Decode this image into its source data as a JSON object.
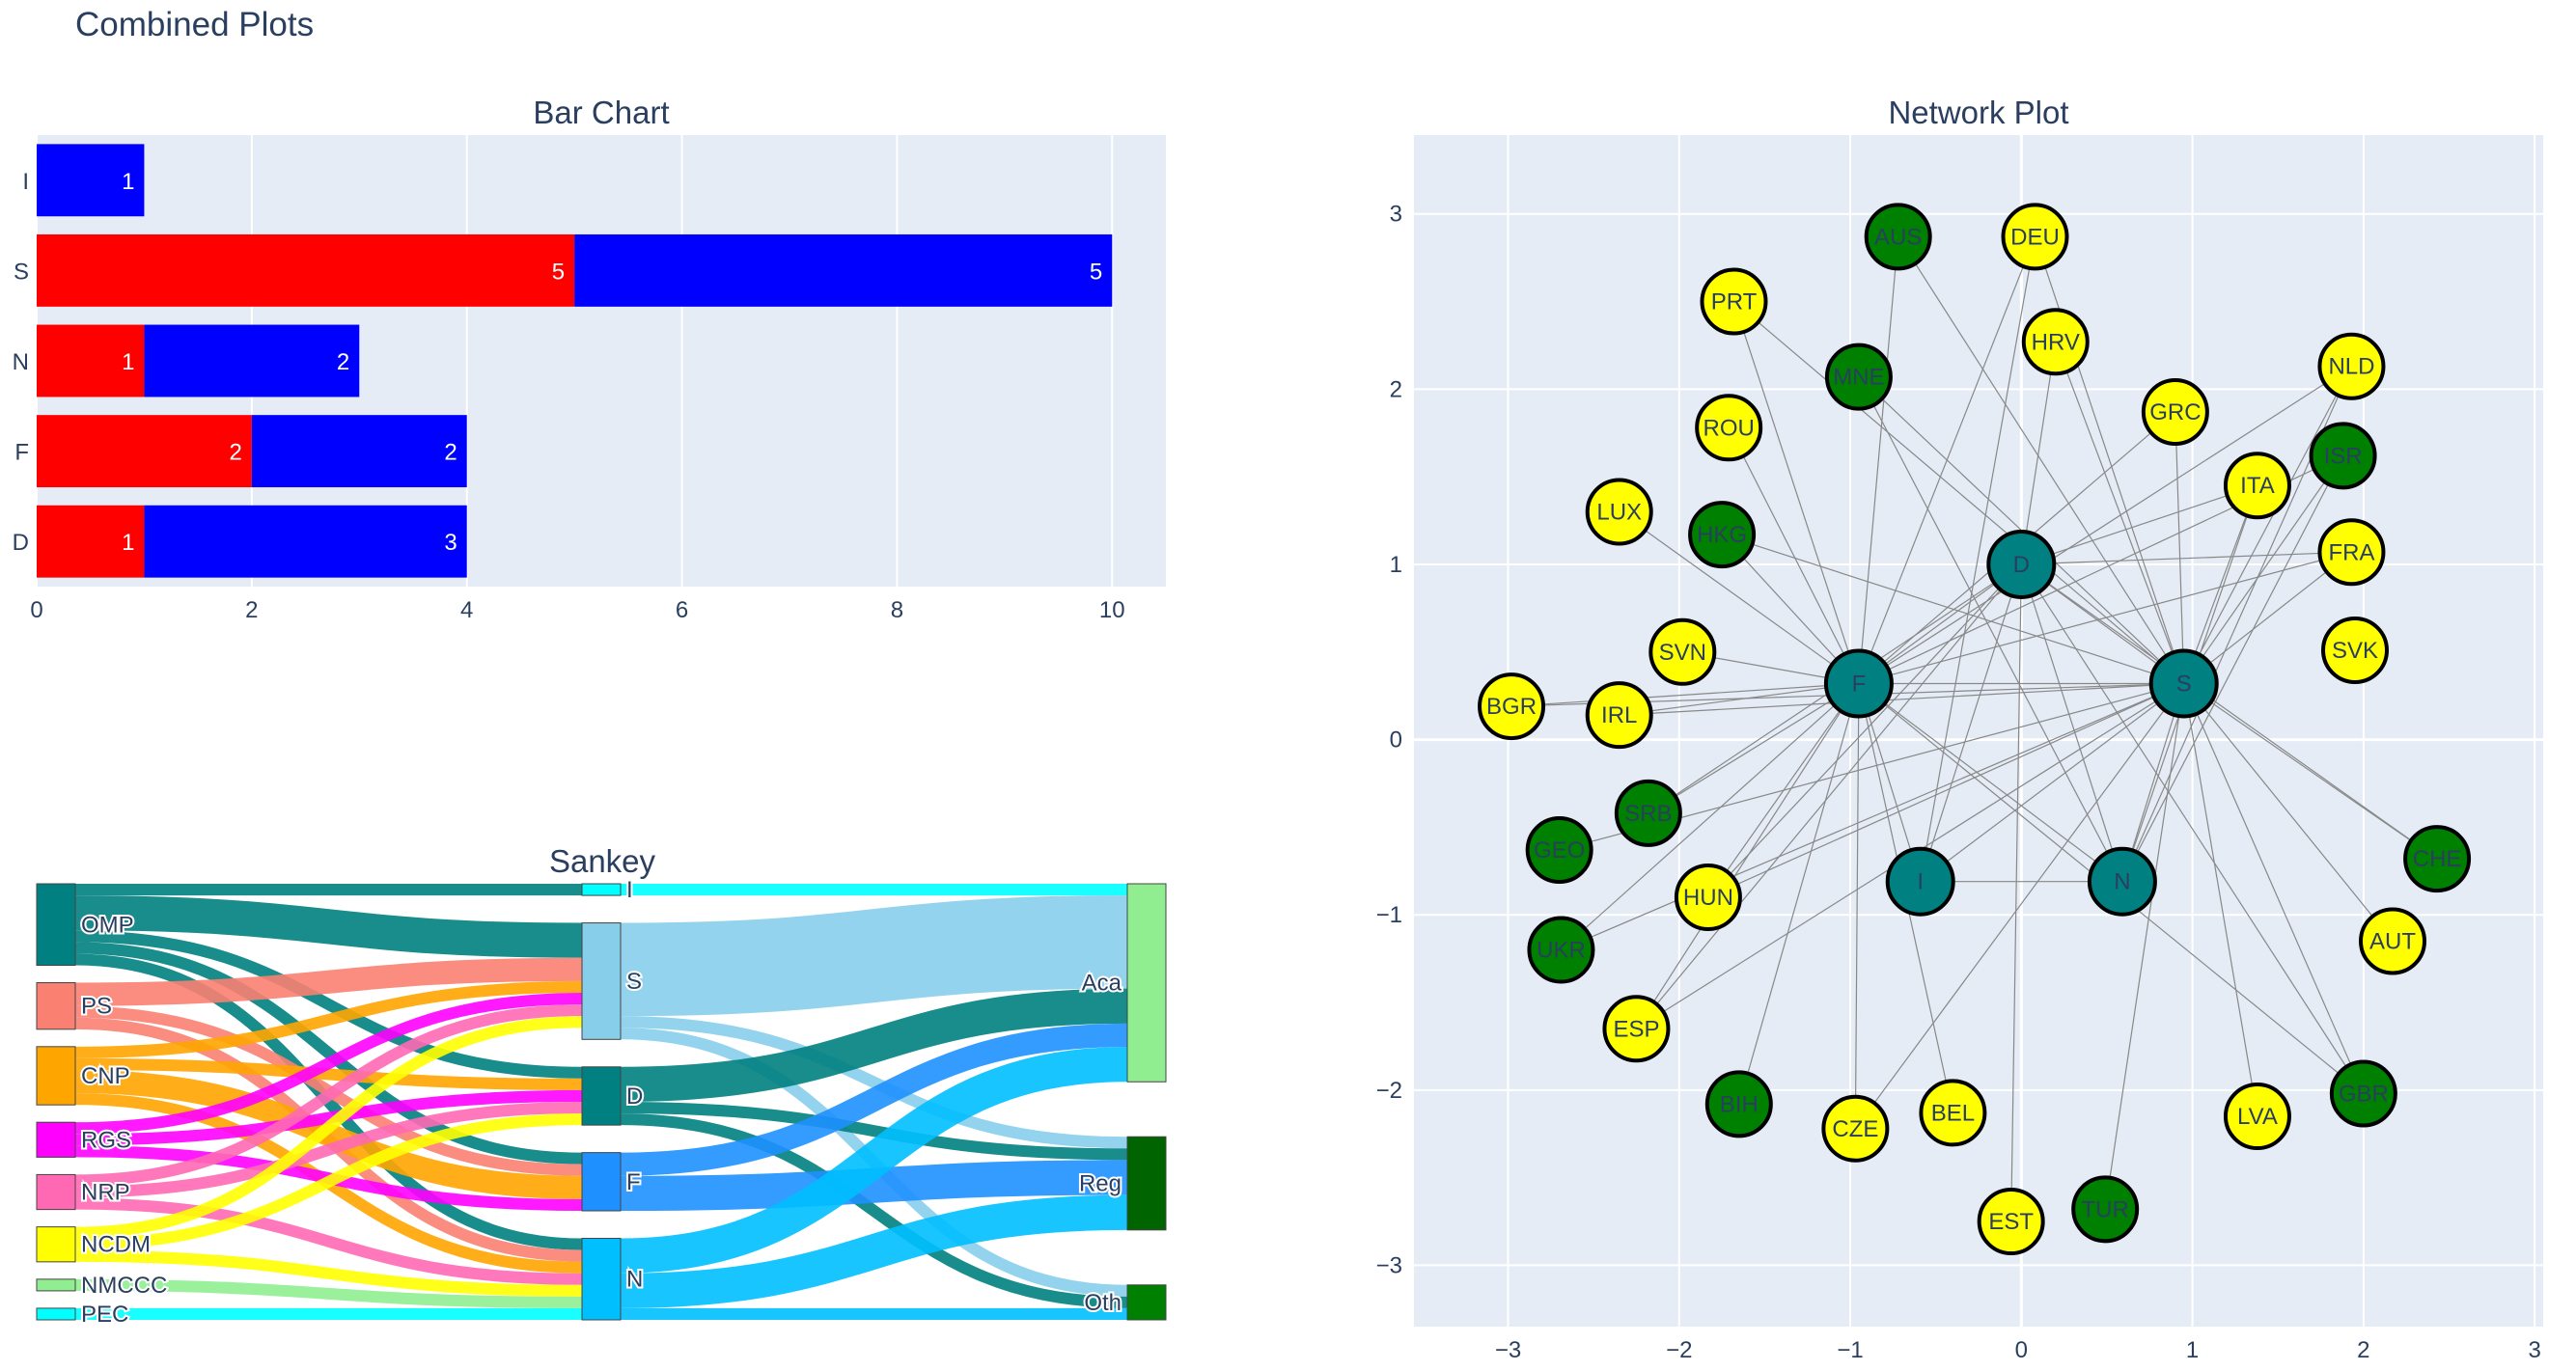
{
  "title": "Combined Plots",
  "colors": {
    "bg": "#e5ecf6",
    "grid": "#ffffff",
    "axis_text": "#2a3f5f"
  },
  "chart_data": [
    {
      "type": "bar",
      "title": "Bar Chart",
      "orientation": "horizontal",
      "barmode": "stack",
      "categories": [
        "I",
        "S",
        "N",
        "F",
        "D"
      ],
      "series": [
        {
          "color": "#ff0000",
          "values": [
            0,
            5,
            1,
            2,
            1
          ]
        },
        {
          "color": "#0000ff",
          "values": [
            1,
            5,
            2,
            2,
            3
          ]
        }
      ],
      "xlim": [
        0,
        10.5
      ],
      "xticks": [
        0,
        2,
        4,
        6,
        8,
        10
      ],
      "grid": true
    },
    {
      "type": "sankey",
      "title": "Sankey",
      "nodes": [
        {
          "id": "OMP",
          "label": "OMP",
          "color": "#008080",
          "column": 0
        },
        {
          "id": "PS",
          "label": "PS",
          "color": "#fa8072",
          "column": 0
        },
        {
          "id": "CNP",
          "label": "CNP",
          "color": "#ffa500",
          "column": 0
        },
        {
          "id": "RGS",
          "label": "RGS",
          "color": "#ff00ff",
          "column": 0
        },
        {
          "id": "NRP",
          "label": "NRP",
          "color": "#ff69b4",
          "column": 0
        },
        {
          "id": "NCDM",
          "label": "NCDM",
          "color": "#ffff00",
          "column": 0
        },
        {
          "id": "NMCCC",
          "label": "NMCCC",
          "color": "#90ee90",
          "column": 0
        },
        {
          "id": "PEC",
          "label": "PEC",
          "color": "#00ffff",
          "column": 0
        },
        {
          "id": "I",
          "label": "I",
          "color": "#00ffff",
          "column": 1
        },
        {
          "id": "S",
          "label": "S",
          "color": "#87ceeb",
          "column": 1
        },
        {
          "id": "D",
          "label": "D",
          "color": "#008080",
          "column": 1
        },
        {
          "id": "F",
          "label": "F",
          "color": "#1e90ff",
          "column": 1
        },
        {
          "id": "N",
          "label": "N",
          "color": "#00bfff",
          "column": 1
        },
        {
          "id": "Aca",
          "label": "Aca",
          "color": "#90ee90",
          "column": 2
        },
        {
          "id": "Reg",
          "label": "Reg",
          "color": "#006400",
          "column": 2
        },
        {
          "id": "Oth",
          "label": "Oth",
          "color": "#008000",
          "column": 2
        }
      ],
      "links": [
        {
          "source": "OMP",
          "target": "I",
          "value": 1
        },
        {
          "source": "OMP",
          "target": "S",
          "value": 3
        },
        {
          "source": "OMP",
          "target": "D",
          "value": 1
        },
        {
          "source": "OMP",
          "target": "F",
          "value": 1
        },
        {
          "source": "OMP",
          "target": "N",
          "value": 1
        },
        {
          "source": "PS",
          "target": "S",
          "value": 2
        },
        {
          "source": "PS",
          "target": "F",
          "value": 1
        },
        {
          "source": "PS",
          "target": "N",
          "value": 1
        },
        {
          "source": "CNP",
          "target": "S",
          "value": 1
        },
        {
          "source": "CNP",
          "target": "D",
          "value": 1
        },
        {
          "source": "CNP",
          "target": "F",
          "value": 2
        },
        {
          "source": "CNP",
          "target": "N",
          "value": 1
        },
        {
          "source": "RGS",
          "target": "S",
          "value": 1
        },
        {
          "source": "RGS",
          "target": "D",
          "value": 1
        },
        {
          "source": "RGS",
          "target": "F",
          "value": 1
        },
        {
          "source": "NRP",
          "target": "S",
          "value": 1
        },
        {
          "source": "NRP",
          "target": "D",
          "value": 1
        },
        {
          "source": "NRP",
          "target": "N",
          "value": 1
        },
        {
          "source": "NCDM",
          "target": "S",
          "value": 1
        },
        {
          "source": "NCDM",
          "target": "D",
          "value": 1
        },
        {
          "source": "NCDM",
          "target": "N",
          "value": 1
        },
        {
          "source": "NMCCC",
          "target": "N",
          "value": 1
        },
        {
          "source": "PEC",
          "target": "N",
          "value": 1
        },
        {
          "source": "I",
          "target": "Aca",
          "value": 1
        },
        {
          "source": "S",
          "target": "Aca",
          "value": 8
        },
        {
          "source": "S",
          "target": "Reg",
          "value": 1
        },
        {
          "source": "S",
          "target": "Oth",
          "value": 1
        },
        {
          "source": "D",
          "target": "Aca",
          "value": 3
        },
        {
          "source": "D",
          "target": "Reg",
          "value": 1
        },
        {
          "source": "D",
          "target": "Oth",
          "value": 1
        },
        {
          "source": "F",
          "target": "Aca",
          "value": 2
        },
        {
          "source": "F",
          "target": "Reg",
          "value": 3
        },
        {
          "source": "N",
          "target": "Aca",
          "value": 3
        },
        {
          "source": "N",
          "target": "Reg",
          "value": 3
        },
        {
          "source": "N",
          "target": "Oth",
          "value": 1
        }
      ]
    },
    {
      "type": "scatter",
      "subtype": "network",
      "title": "Network Plot",
      "xlim": [
        -3.55,
        3.05
      ],
      "ylim": [
        -3.35,
        3.45
      ],
      "xticks": [
        -3,
        -2,
        -1,
        0,
        1,
        2,
        3
      ],
      "yticks": [
        3,
        2,
        1,
        0,
        -1,
        -2,
        -3
      ],
      "tick_labels": {
        "-3": "−3",
        "-2": "−2",
        "-1": "−1",
        "0": "0",
        "1": "1",
        "2": "2",
        "3": "3"
      },
      "colors": {
        "hub": "#008080",
        "yellow": "#ffff00",
        "green": "#008000",
        "edge": "#888888"
      },
      "nodes": [
        {
          "label": "D",
          "x": 0.0,
          "y": 1.0,
          "group": "hub"
        },
        {
          "label": "S",
          "x": 0.95,
          "y": 0.32,
          "group": "hub"
        },
        {
          "label": "F",
          "x": -0.95,
          "y": 0.32,
          "group": "hub"
        },
        {
          "label": "I",
          "x": -0.59,
          "y": -0.81,
          "group": "hub"
        },
        {
          "label": "N",
          "x": 0.59,
          "y": -0.81,
          "group": "hub"
        },
        {
          "label": "AUS",
          "x": -0.72,
          "y": 2.87,
          "group": "green"
        },
        {
          "label": "DEU",
          "x": 0.08,
          "y": 2.87,
          "group": "yellow"
        },
        {
          "label": "PRT",
          "x": -1.68,
          "y": 2.5,
          "group": "yellow"
        },
        {
          "label": "HRV",
          "x": 0.2,
          "y": 2.27,
          "group": "yellow"
        },
        {
          "label": "MNE",
          "x": -0.95,
          "y": 2.07,
          "group": "green"
        },
        {
          "label": "NLD",
          "x": 1.93,
          "y": 2.13,
          "group": "yellow"
        },
        {
          "label": "GRC",
          "x": 0.9,
          "y": 1.87,
          "group": "yellow"
        },
        {
          "label": "ROU",
          "x": -1.71,
          "y": 1.78,
          "group": "yellow"
        },
        {
          "label": "ISR",
          "x": 1.88,
          "y": 1.62,
          "group": "green"
        },
        {
          "label": "ITA",
          "x": 1.38,
          "y": 1.45,
          "group": "yellow"
        },
        {
          "label": "LUX",
          "x": -2.35,
          "y": 1.3,
          "group": "yellow"
        },
        {
          "label": "HKG",
          "x": -1.75,
          "y": 1.17,
          "group": "green"
        },
        {
          "label": "FRA",
          "x": 1.93,
          "y": 1.07,
          "group": "yellow"
        },
        {
          "label": "SVK",
          "x": 1.95,
          "y": 0.51,
          "group": "yellow"
        },
        {
          "label": "SVN",
          "x": -1.98,
          "y": 0.5,
          "group": "yellow"
        },
        {
          "label": "BGR",
          "x": -2.98,
          "y": 0.19,
          "group": "yellow"
        },
        {
          "label": "IRL",
          "x": -2.35,
          "y": 0.14,
          "group": "yellow"
        },
        {
          "label": "SRB",
          "x": -2.18,
          "y": -0.42,
          "group": "green"
        },
        {
          "label": "GEO",
          "x": -2.7,
          "y": -0.63,
          "group": "green"
        },
        {
          "label": "CHE",
          "x": 2.43,
          "y": -0.68,
          "group": "green"
        },
        {
          "label": "HUN",
          "x": -1.83,
          "y": -0.9,
          "group": "yellow"
        },
        {
          "label": "UKR",
          "x": -2.69,
          "y": -1.2,
          "group": "green"
        },
        {
          "label": "AUT",
          "x": 2.17,
          "y": -1.15,
          "group": "yellow"
        },
        {
          "label": "ESP",
          "x": -2.25,
          "y": -1.65,
          "group": "yellow"
        },
        {
          "label": "BIH",
          "x": -1.65,
          "y": -2.08,
          "group": "green"
        },
        {
          "label": "CZE",
          "x": -0.97,
          "y": -2.22,
          "group": "yellow"
        },
        {
          "label": "BEL",
          "x": -0.4,
          "y": -2.13,
          "group": "yellow"
        },
        {
          "label": "LVA",
          "x": 1.38,
          "y": -2.15,
          "group": "yellow"
        },
        {
          "label": "GBR",
          "x": 2.0,
          "y": -2.02,
          "group": "green"
        },
        {
          "label": "EST",
          "x": -0.06,
          "y": -2.75,
          "group": "yellow"
        },
        {
          "label": "TUR",
          "x": 0.49,
          "y": -2.68,
          "group": "green"
        }
      ],
      "edges": [
        [
          "D",
          "S"
        ],
        [
          "D",
          "F"
        ],
        [
          "D",
          "I"
        ],
        [
          "D",
          "N"
        ],
        [
          "S",
          "F"
        ],
        [
          "S",
          "I"
        ],
        [
          "S",
          "N"
        ],
        [
          "F",
          "I"
        ],
        [
          "F",
          "N"
        ],
        [
          "I",
          "N"
        ],
        [
          "AUS",
          "S"
        ],
        [
          "AUS",
          "F"
        ],
        [
          "DEU",
          "F"
        ],
        [
          "DEU",
          "S"
        ],
        [
          "DEU",
          "I"
        ],
        [
          "PRT",
          "F"
        ],
        [
          "PRT",
          "S"
        ],
        [
          "HRV",
          "S"
        ],
        [
          "HRV",
          "D"
        ],
        [
          "MNE",
          "S"
        ],
        [
          "MNE",
          "N"
        ],
        [
          "NLD",
          "F"
        ],
        [
          "NLD",
          "S"
        ],
        [
          "NLD",
          "N"
        ],
        [
          "GRC",
          "F"
        ],
        [
          "GRC",
          "S"
        ],
        [
          "ROU",
          "F"
        ],
        [
          "ISR",
          "F"
        ],
        [
          "ISR",
          "S"
        ],
        [
          "ISR",
          "N"
        ],
        [
          "ITA",
          "S"
        ],
        [
          "ITA",
          "N"
        ],
        [
          "ITA",
          "D"
        ],
        [
          "LUX",
          "F"
        ],
        [
          "HKG",
          "S"
        ],
        [
          "HKG",
          "F"
        ],
        [
          "FRA",
          "F"
        ],
        [
          "FRA",
          "S"
        ],
        [
          "FRA",
          "D"
        ],
        [
          "SVN",
          "F"
        ],
        [
          "BGR",
          "F"
        ],
        [
          "BGR",
          "S"
        ],
        [
          "IRL",
          "F"
        ],
        [
          "IRL",
          "S"
        ],
        [
          "SRB",
          "F"
        ],
        [
          "SRB",
          "D"
        ],
        [
          "GEO",
          "S"
        ],
        [
          "CHE",
          "S"
        ],
        [
          "CHE",
          "D"
        ],
        [
          "HUN",
          "F"
        ],
        [
          "HUN",
          "S"
        ],
        [
          "HUN",
          "D"
        ],
        [
          "UKR",
          "S"
        ],
        [
          "UKR",
          "F"
        ],
        [
          "AUT",
          "S"
        ],
        [
          "ESP",
          "F"
        ],
        [
          "ESP",
          "S"
        ],
        [
          "ESP",
          "D"
        ],
        [
          "BIH",
          "F"
        ],
        [
          "CZE",
          "S"
        ],
        [
          "CZE",
          "F"
        ],
        [
          "BEL",
          "F"
        ],
        [
          "LVA",
          "S"
        ],
        [
          "GBR",
          "S"
        ],
        [
          "GBR",
          "F"
        ],
        [
          "GBR",
          "D"
        ],
        [
          "EST",
          "D"
        ],
        [
          "TUR",
          "S"
        ]
      ]
    }
  ]
}
